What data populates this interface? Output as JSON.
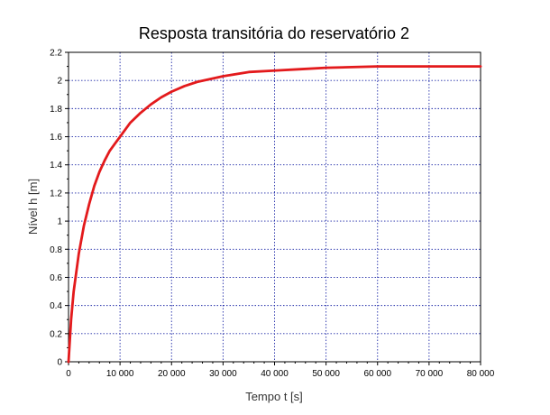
{
  "chart_data": {
    "type": "line",
    "title": "Resposta transitória do reservatório 2",
    "xlabel": "Tempo t [s]",
    "ylabel": "Nível h [m]",
    "xlim": [
      0,
      80000
    ],
    "ylim": [
      0,
      2.2
    ],
    "grid": true,
    "xticks": [
      0,
      10000,
      20000,
      30000,
      40000,
      50000,
      60000,
      70000,
      80000
    ],
    "xtick_labels": [
      "0",
      "10 000",
      "20 000",
      "30 000",
      "40 000",
      "50 000",
      "60 000",
      "70 000",
      "80 000"
    ],
    "yticks": [
      0,
      0.2,
      0.4,
      0.6,
      0.8,
      1,
      1.2,
      1.4,
      1.6,
      1.8,
      2,
      2.2
    ],
    "ytick_labels": [
      "0",
      "0.2",
      "0.4",
      "0.6",
      "0.8",
      "1",
      "1.2",
      "1.4",
      "1.6",
      "1.8",
      "2",
      "2.2"
    ],
    "series": [
      {
        "color": "#e31a1c",
        "x": [
          0,
          500,
          1000,
          2000,
          3000,
          4000,
          5000,
          6000,
          7000,
          8000,
          9000,
          10000,
          12000,
          14000,
          16000,
          18000,
          20000,
          22500,
          25000,
          27500,
          30000,
          35000,
          40000,
          45000,
          50000,
          55000,
          60000,
          65000,
          70000,
          75000,
          80000
        ],
        "y": [
          0,
          0.3,
          0.5,
          0.77,
          0.97,
          1.12,
          1.25,
          1.35,
          1.43,
          1.5,
          1.55,
          1.6,
          1.7,
          1.77,
          1.83,
          1.88,
          1.92,
          1.96,
          1.99,
          2.01,
          2.03,
          2.06,
          2.07,
          2.08,
          2.09,
          2.095,
          2.1,
          2.1,
          2.1,
          2.1,
          2.1
        ]
      }
    ]
  }
}
